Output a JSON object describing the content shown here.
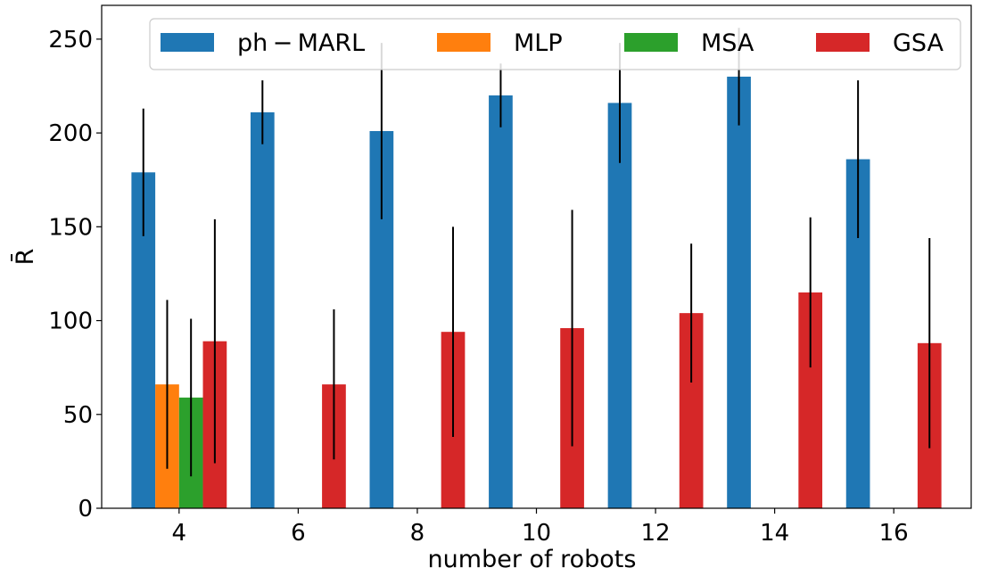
{
  "chart_data": {
    "type": "bar",
    "title": "",
    "xlabel": "number of robots",
    "ylabel": "R̄",
    "xlim": [
      2.7,
      17.3
    ],
    "ylim": [
      0,
      268
    ],
    "x_ticks": [
      4,
      6,
      8,
      10,
      12,
      14,
      16
    ],
    "y_ticks": [
      0,
      50,
      100,
      150,
      200,
      250
    ],
    "legend_position": "top",
    "categories": [
      4,
      6,
      8,
      10,
      12,
      14,
      16
    ],
    "series": [
      {
        "name": "ph − MARL",
        "color": "#1f77b4",
        "x": [
          3.4,
          5.4,
          7.4,
          9.4,
          11.4,
          13.4,
          15.4
        ],
        "values": [
          179,
          211,
          201,
          220,
          216,
          230,
          186
        ],
        "errors": [
          34,
          17,
          47,
          17,
          32,
          26,
          42
        ]
      },
      {
        "name": "MLP",
        "color": "#ff7f0e",
        "x": [
          3.8
        ],
        "values": [
          66
        ],
        "errors": [
          45
        ]
      },
      {
        "name": "MSA",
        "color": "#2ca02c",
        "x": [
          4.2
        ],
        "values": [
          59
        ],
        "errors": [
          42
        ]
      },
      {
        "name": "GSA",
        "color": "#d62728",
        "x": [
          4.6,
          6.6,
          8.6,
          10.6,
          12.6,
          14.6,
          16.6
        ],
        "values": [
          89,
          66,
          94,
          96,
          104,
          115,
          88
        ],
        "errors": [
          65,
          40,
          56,
          63,
          37,
          40,
          56
        ]
      }
    ]
  }
}
